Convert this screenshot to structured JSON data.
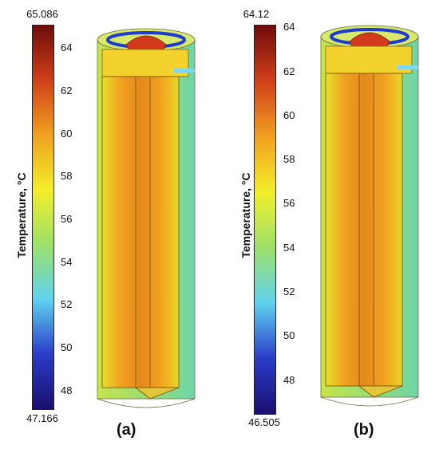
{
  "figure": {
    "panels": [
      {
        "label": "(a)",
        "colorbar": {
          "title": "Temperature, °C",
          "max_label": "65.086",
          "min_label": "47.166",
          "max": 65.086,
          "min": 47.166,
          "ticks": [
            "64",
            "62",
            "60",
            "58",
            "56",
            "54",
            "52",
            "50",
            "48"
          ],
          "tick_values": [
            64,
            62,
            60,
            58,
            56,
            54,
            52,
            50,
            48
          ]
        }
      },
      {
        "label": "(b)",
        "colorbar": {
          "title": "Temperature, °C",
          "max_label": "64.12",
          "min_label": "46.505",
          "max": 64.12,
          "min": 46.505,
          "ticks": [
            "64",
            "62",
            "60",
            "58",
            "56",
            "54",
            "52",
            "50",
            "48"
          ],
          "tick_values": [
            64,
            62,
            60,
            58,
            56,
            54,
            52,
            50,
            48
          ]
        }
      }
    ],
    "colormap": [
      "#1a0f6e",
      "#2a3cc8",
      "#5fd2ee",
      "#9ee06a",
      "#f2ee2a",
      "#f0a020",
      "#d0401a",
      "#6e0c0c"
    ]
  }
}
